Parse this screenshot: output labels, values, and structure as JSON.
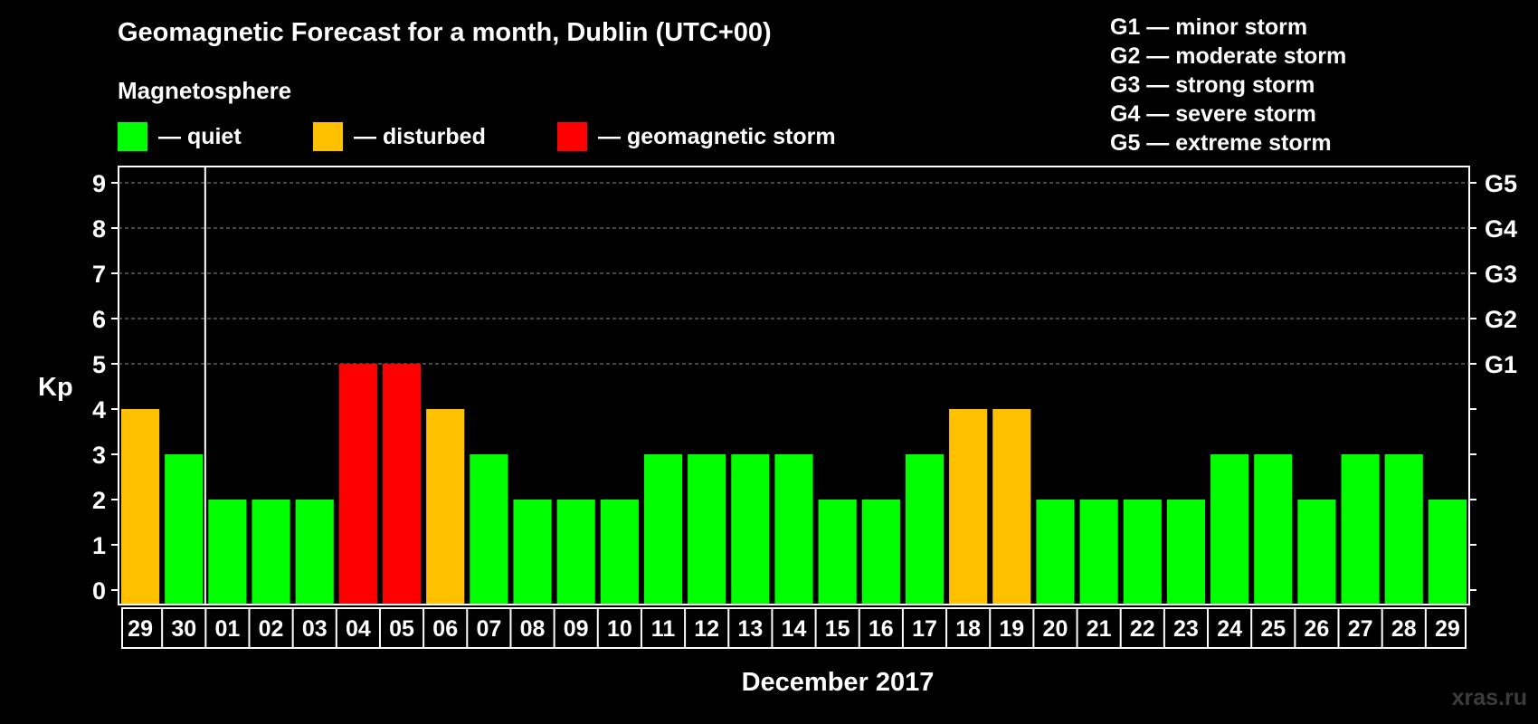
{
  "chart_data": {
    "type": "bar",
    "title": "Geomagnetic Forecast for a month, Dublin (UTC+00)",
    "subtitle": "Magnetosphere",
    "xlabel": "December 2017",
    "ylabel": "Kp",
    "ylim": [
      0,
      9
    ],
    "yticks": [
      "0",
      "1",
      "2",
      "3",
      "4",
      "5",
      "6",
      "7",
      "8",
      "9"
    ],
    "right_axis_labels": [
      {
        "kp": 5,
        "label": "G1"
      },
      {
        "kp": 6,
        "label": "G2"
      },
      {
        "kp": 7,
        "label": "G3"
      },
      {
        "kp": 8,
        "label": "G4"
      },
      {
        "kp": 9,
        "label": "G5"
      }
    ],
    "categories": [
      "29",
      "30",
      "01",
      "02",
      "03",
      "04",
      "05",
      "06",
      "07",
      "08",
      "09",
      "10",
      "11",
      "12",
      "13",
      "14",
      "15",
      "16",
      "17",
      "18",
      "19",
      "20",
      "21",
      "22",
      "23",
      "24",
      "25",
      "26",
      "27",
      "28",
      "29"
    ],
    "values": [
      4,
      3,
      2,
      2,
      2,
      5,
      5,
      4,
      3,
      2,
      2,
      2,
      3,
      3,
      3,
      3,
      2,
      2,
      3,
      4,
      4,
      2,
      2,
      2,
      2,
      3,
      3,
      2,
      3,
      3,
      2
    ],
    "month_separator_after_index": 1,
    "colors": {
      "quiet": "#00ff00",
      "disturbed": "#ffc000",
      "storm": "#ff0000"
    },
    "legend": [
      {
        "label": "— quiet",
        "color": "#00ff00"
      },
      {
        "label": "— disturbed",
        "color": "#ffc000"
      },
      {
        "label": "— geomagnetic storm",
        "color": "#ff0000"
      }
    ],
    "storm_scale": [
      "G1 — minor storm",
      "G2 — moderate storm",
      "G3 — strong storm",
      "G4 — severe storm",
      "G5 — extreme storm"
    ]
  },
  "watermark": "xras.ru"
}
